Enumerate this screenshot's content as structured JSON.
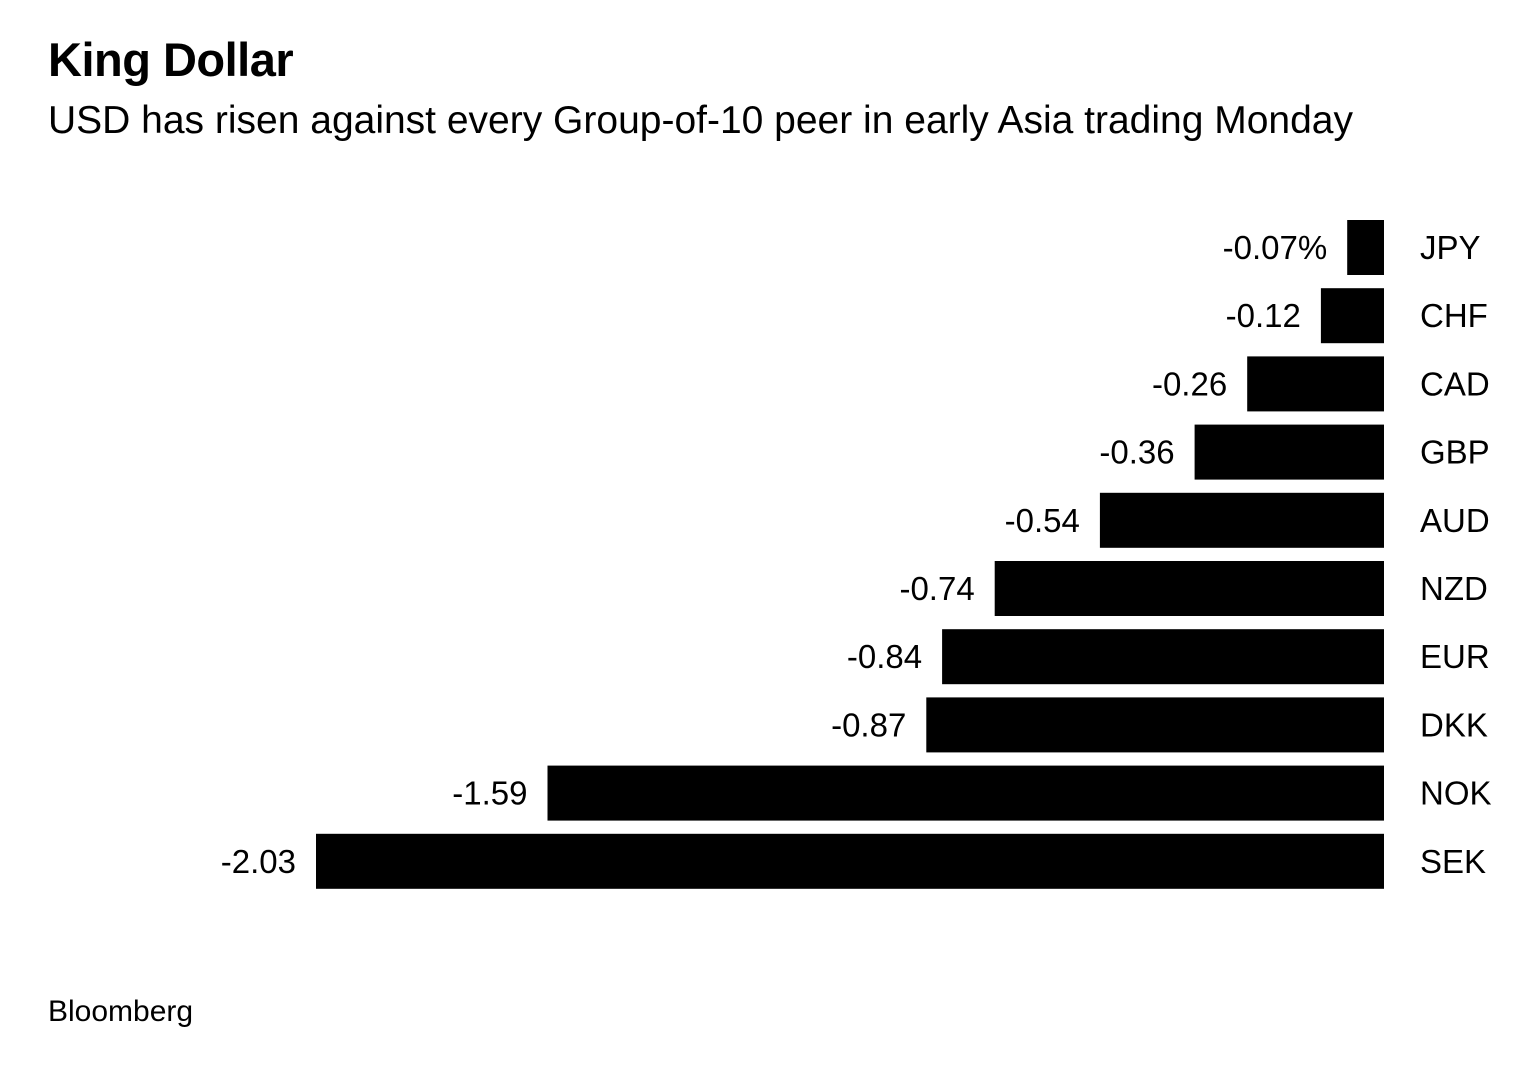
{
  "header": {
    "title": "King Dollar",
    "subtitle": "USD has risen against every Group-of-10 peer in early Asia trading Monday"
  },
  "footer": {
    "source": "Bloomberg"
  },
  "colors": {
    "bar": "#000000",
    "text": "#000000",
    "background": "#ffffff"
  },
  "chart_data": {
    "type": "bar",
    "orientation": "horizontal",
    "title": "King Dollar",
    "subtitle": "USD has risen against every Group-of-10 peer in early Asia trading Monday",
    "xlabel": "",
    "ylabel": "",
    "unit": "%",
    "grid": false,
    "legend": "none",
    "xlim": [
      -2.03,
      0
    ],
    "categories": [
      "JPY",
      "CHF",
      "CAD",
      "GBP",
      "AUD",
      "NZD",
      "EUR",
      "DKK",
      "NOK",
      "SEK"
    ],
    "values": [
      -0.07,
      -0.12,
      -0.26,
      -0.36,
      -0.54,
      -0.74,
      -0.84,
      -0.87,
      -1.59,
      -2.03
    ],
    "value_labels": [
      "-0.07%",
      "-0.12",
      "-0.26",
      "-0.36",
      "-0.54",
      "-0.74",
      "-0.84",
      "-0.87",
      "-1.59",
      "-2.03"
    ]
  }
}
